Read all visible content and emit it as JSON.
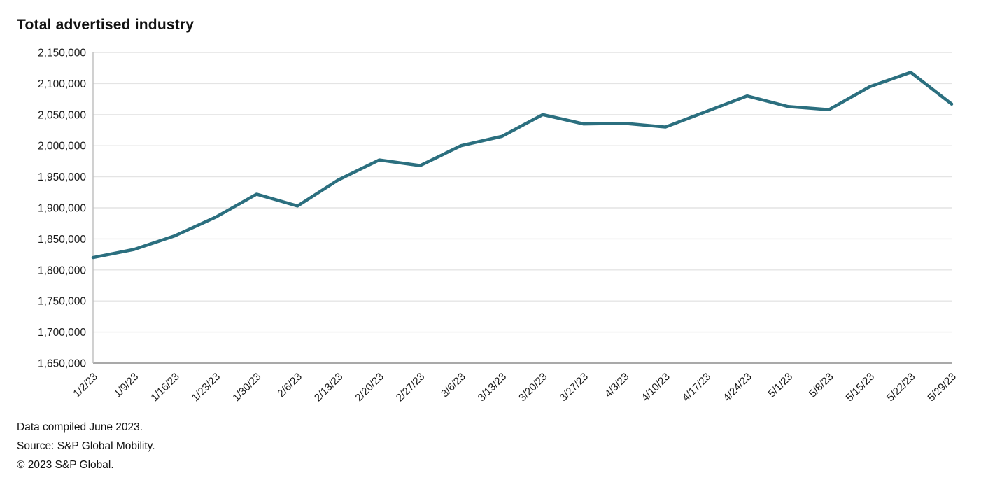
{
  "chart_data": {
    "type": "line",
    "title": "Total advertised industry",
    "categories": [
      "1/2/23",
      "1/9/23",
      "1/16/23",
      "1/23/23",
      "1/30/23",
      "2/6/23",
      "2/13/23",
      "2/20/23",
      "2/27/23",
      "3/6/23",
      "3/13/23",
      "3/20/23",
      "3/27/23",
      "4/3/23",
      "4/10/23",
      "4/17/23",
      "4/24/23",
      "5/1/23",
      "5/8/23",
      "5/15/23",
      "5/22/23",
      "5/29/23"
    ],
    "series": [
      {
        "name": "Total advertised industry",
        "values": [
          1820000,
          1833000,
          1855000,
          1885000,
          1922000,
          1903000,
          1945000,
          1977000,
          1968000,
          2000000,
          2015000,
          2050000,
          2035000,
          2036000,
          2030000,
          2055000,
          2080000,
          2063000,
          2058000,
          2095000,
          2118000,
          2067000
        ]
      }
    ],
    "xlabel": "",
    "ylabel": "",
    "ylim": [
      1650000,
      2150000
    ],
    "ytick_step": 50000,
    "grid": "horizontal",
    "legend_position": "none",
    "line_color": "#2b6f7f",
    "grid_color": "#e4e4e4",
    "axis_color": "#a9a9a9",
    "left_axis_color": "#bdbdbd",
    "tick_label_color": "#1a1a1a"
  },
  "footer": {
    "line1": "Data compiled June 2023.",
    "line2": "Source: S&P Global Mobility.",
    "line3": "© 2023 S&P Global."
  }
}
